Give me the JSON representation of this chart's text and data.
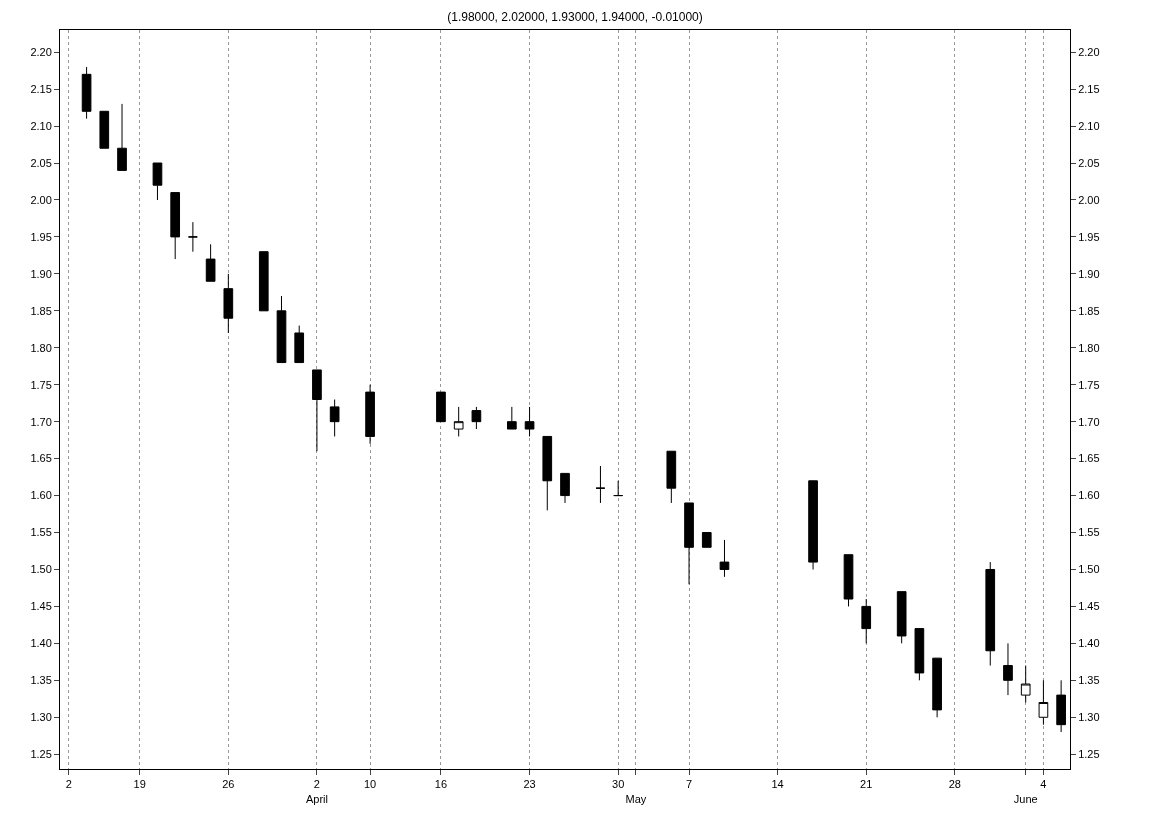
{
  "chart_data": {
    "type": "candlestick",
    "title": "(1.98000, 2.02000, 1.93000, 1.94000, -0.01000)",
    "categories": [
      "2",
      null,
      null,
      null,
      "19",
      null,
      null,
      null,
      null,
      "26",
      null,
      null,
      null,
      null,
      "2\nApril",
      null,
      null,
      "10",
      null,
      null,
      null,
      "16",
      null,
      null,
      null,
      null,
      "23",
      null,
      null,
      null,
      null,
      "30",
      "\nMay",
      null,
      null,
      "7",
      null,
      null,
      null,
      null,
      "14",
      null,
      null,
      null,
      null,
      "21",
      null,
      null,
      null,
      null,
      "28",
      null,
      null,
      null,
      "\nJune",
      "4",
      null
    ],
    "series": [
      {
        "color": "#000000",
        "ohlc": [
          null,
          [
            2.17,
            2.18,
            2.11,
            2.12
          ],
          [
            2.12,
            2.12,
            2.07,
            2.07
          ],
          [
            2.07,
            2.13,
            2.04,
            2.04
          ],
          null,
          [
            2.05,
            2.05,
            2.0,
            2.02
          ],
          [
            2.01,
            2.01,
            1.92,
            1.95
          ],
          [
            1.95,
            1.97,
            1.93,
            1.95
          ],
          [
            1.92,
            1.94,
            1.89,
            1.89
          ],
          [
            1.88,
            1.9,
            1.82,
            1.84
          ],
          null,
          [
            1.93,
            1.93,
            1.85,
            1.85
          ],
          [
            1.85,
            1.87,
            1.78,
            1.78
          ],
          [
            1.82,
            1.83,
            1.78,
            1.78
          ],
          [
            1.77,
            1.77,
            1.66,
            1.73
          ],
          [
            1.72,
            1.73,
            1.68,
            1.7
          ],
          null,
          [
            1.74,
            1.75,
            1.67,
            1.68
          ],
          null,
          null,
          null,
          [
            1.74,
            1.74,
            1.7,
            1.7
          ],
          [
            1.69,
            1.72,
            1.68,
            1.7
          ],
          [
            1.715,
            1.72,
            1.69,
            1.7
          ],
          null,
          [
            1.7,
            1.72,
            1.69,
            1.69
          ],
          [
            1.7,
            1.72,
            1.68,
            1.69
          ],
          [
            1.68,
            1.68,
            1.58,
            1.62
          ],
          [
            1.63,
            1.63,
            1.59,
            1.6
          ],
          null,
          [
            1.61,
            1.64,
            1.59,
            1.61
          ],
          [
            1.6,
            1.62,
            1.6,
            1.6
          ],
          null,
          null,
          [
            1.66,
            1.66,
            1.59,
            1.61
          ],
          [
            1.59,
            1.59,
            1.48,
            1.53
          ],
          [
            1.55,
            1.55,
            1.53,
            1.53
          ],
          [
            1.51,
            1.54,
            1.49,
            1.5
          ],
          null,
          null,
          null,
          null,
          [
            1.62,
            1.62,
            1.5,
            1.51
          ],
          null,
          [
            1.52,
            1.52,
            1.45,
            1.46
          ],
          [
            1.45,
            1.46,
            1.4,
            1.42
          ],
          null,
          [
            1.47,
            1.47,
            1.4,
            1.41
          ],
          [
            1.42,
            1.42,
            1.35,
            1.36
          ],
          [
            1.38,
            1.38,
            1.3,
            1.31
          ],
          null,
          null,
          [
            1.5,
            1.51,
            1.37,
            1.39
          ],
          [
            1.37,
            1.4,
            1.33,
            1.35
          ],
          [
            1.33,
            1.37,
            1.32,
            1.345
          ],
          [
            1.3,
            1.35,
            1.29,
            1.32
          ],
          [
            1.33,
            1.35,
            1.28,
            1.29
          ]
        ]
      }
    ],
    "ylim": [
      1.23,
      2.23
    ],
    "yticks": [
      1.25,
      {
        "value": 1.3,
        "label": "1.30"
      },
      1.35,
      {
        "value": 1.4,
        "label": "1.40"
      },
      1.45,
      {
        "value": 1.5,
        "label": "1.50"
      },
      1.55,
      {
        "value": 1.6,
        "label": "1.60"
      },
      1.65,
      {
        "value": 1.7,
        "label": "1.70"
      },
      1.75,
      {
        "value": 1.8,
        "label": "1.80"
      },
      1.85,
      {
        "value": 1.9,
        "label": "1.90"
      },
      1.95,
      {
        "value": 2.0,
        "label": "2.00"
      },
      2.05,
      {
        "value": 2.1,
        "label": "2.10"
      },
      2.15,
      {
        "value": 2.2,
        "label": "2.20"
      }
    ],
    "y2lim": [
      1.23,
      2.23
    ],
    "y2ticks": [
      1.25,
      {
        "value": 1.3,
        "label": "1.30"
      },
      1.35,
      {
        "value": 1.4,
        "label": "1.40"
      },
      1.45,
      {
        "value": 1.5,
        "label": "1.50"
      },
      1.55,
      {
        "value": 1.6,
        "label": "1.60"
      },
      1.65,
      {
        "value": 1.7,
        "label": "1.70"
      },
      1.75,
      {
        "value": 1.8,
        "label": "1.80"
      },
      1.85,
      {
        "value": 1.9,
        "label": "1.90"
      },
      1.95,
      {
        "value": 2.0,
        "label": "2.00"
      },
      2.05,
      {
        "value": 2.1,
        "label": "2.10"
      },
      2.15,
      {
        "value": 2.2,
        "label": "2.20"
      }
    ],
    "grid": "x"
  }
}
